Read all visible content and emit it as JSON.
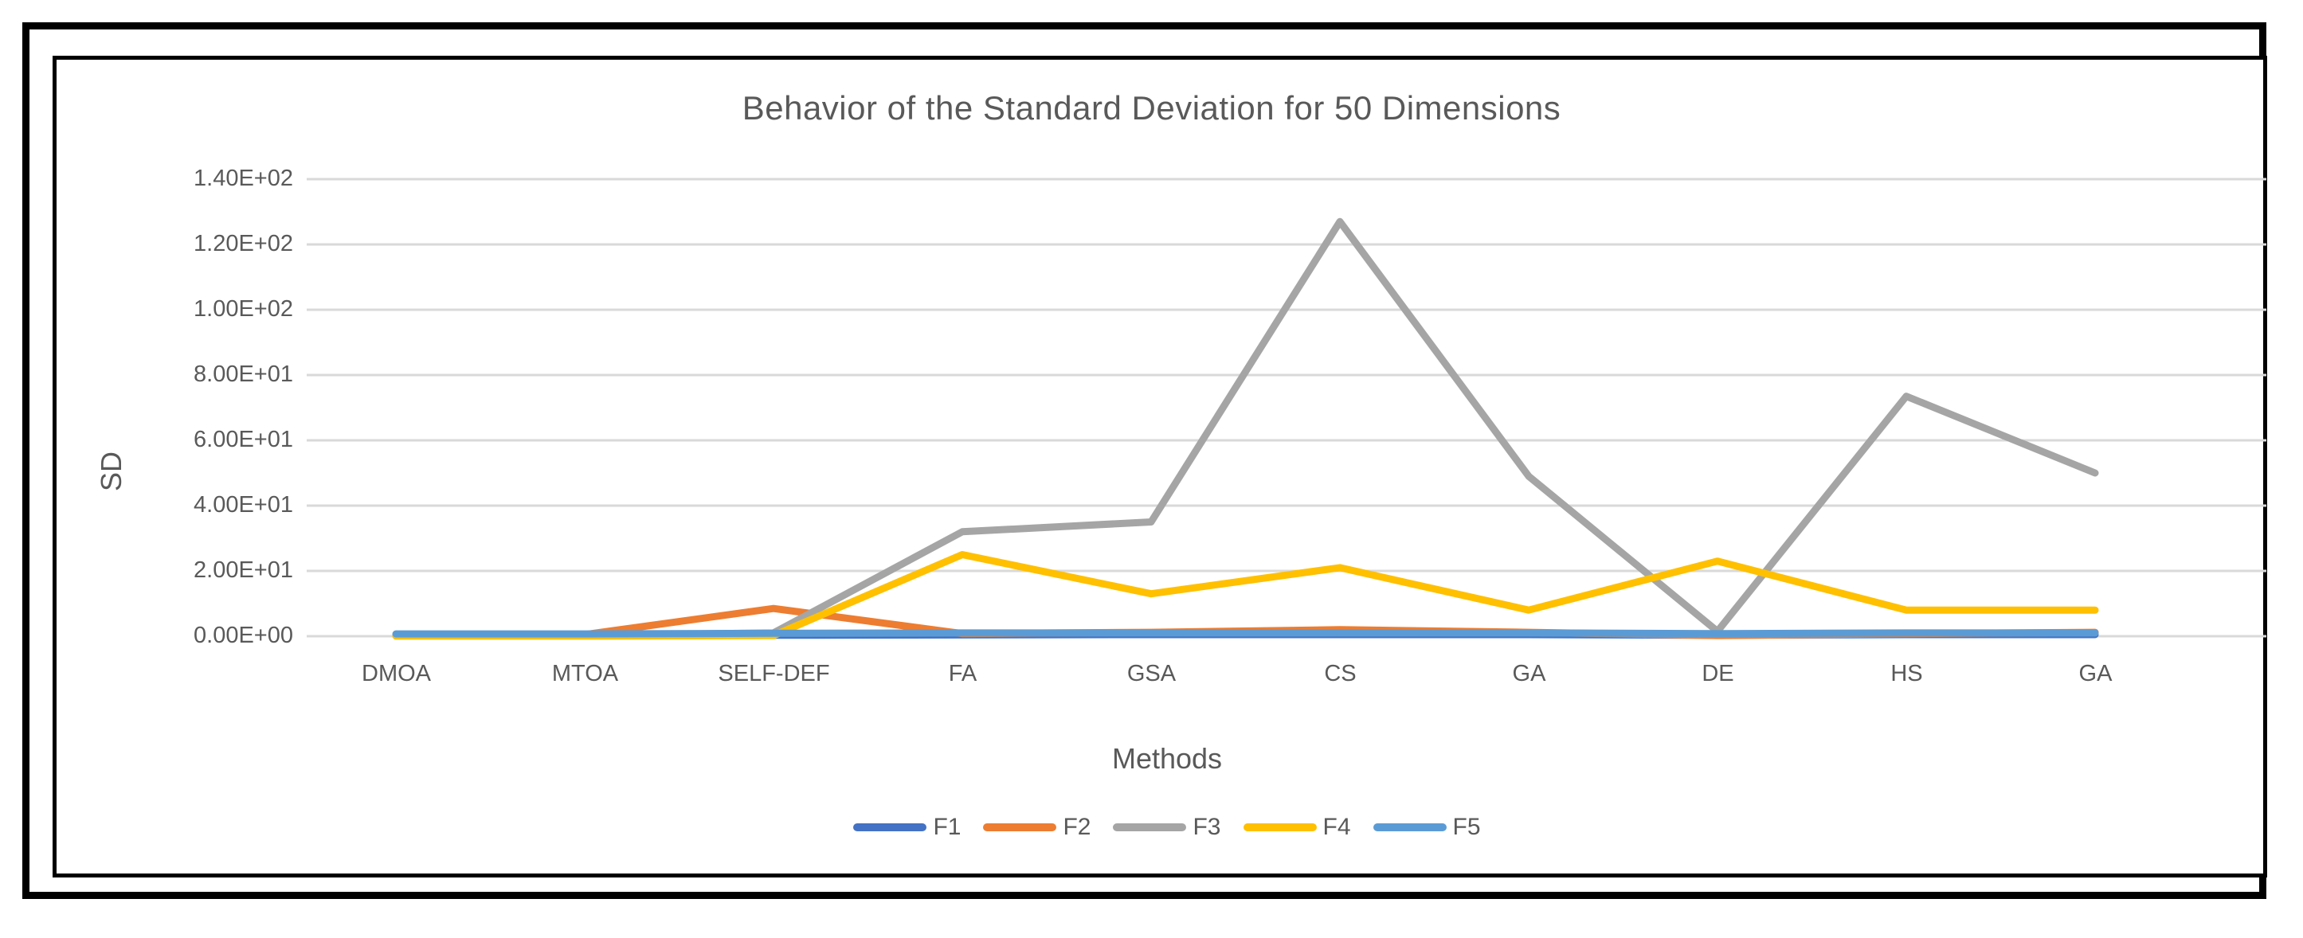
{
  "chart_data": {
    "type": "line",
    "title": "Behavior of the Standard Deviation for 50 Dimensions",
    "xlabel": "Methods",
    "ylabel": "SD",
    "categories": [
      "DMOA",
      "MTOA",
      "SELF-DEF",
      "FA",
      "GSA",
      "CS",
      "GA",
      "DE",
      "HS",
      "GA"
    ],
    "series": [
      {
        "name": "F1",
        "color": "#4472C4",
        "values": [
          0.3,
          0.3,
          0.3,
          0.4,
          0.5,
          0.5,
          0.5,
          0.3,
          0.5,
          0.5
        ]
      },
      {
        "name": "F2",
        "color": "#ED7D31",
        "values": [
          0.2,
          0.5,
          8.5,
          0.8,
          1.2,
          2.0,
          1.2,
          0.2,
          0.8,
          1.2
        ]
      },
      {
        "name": "F3",
        "color": "#A5A5A5",
        "values": [
          0.2,
          0.3,
          1.0,
          32.0,
          35.0,
          127.0,
          49.0,
          1.5,
          73.5,
          50.0
        ]
      },
      {
        "name": "F4",
        "color": "#FFC000",
        "values": [
          0.05,
          0.05,
          0.2,
          25.0,
          13.0,
          21.0,
          8.0,
          23.0,
          8.0,
          8.0
        ]
      },
      {
        "name": "F5",
        "color": "#5B9BD5",
        "values": [
          0.7,
          0.7,
          0.9,
          1.0,
          1.0,
          1.0,
          1.0,
          0.8,
          1.0,
          1.0
        ]
      }
    ],
    "y_ticks": [
      "0.00E+00",
      "2.00E+01",
      "4.00E+01",
      "6.00E+01",
      "8.00E+01",
      "1.00E+02",
      "1.20E+02",
      "1.40E+02"
    ],
    "ylim": [
      0,
      140
    ],
    "grid": true,
    "legend_position": "bottom",
    "colors": {
      "gridline": "#D9D9D9",
      "text": "#595959",
      "frame": "#000000"
    }
  }
}
